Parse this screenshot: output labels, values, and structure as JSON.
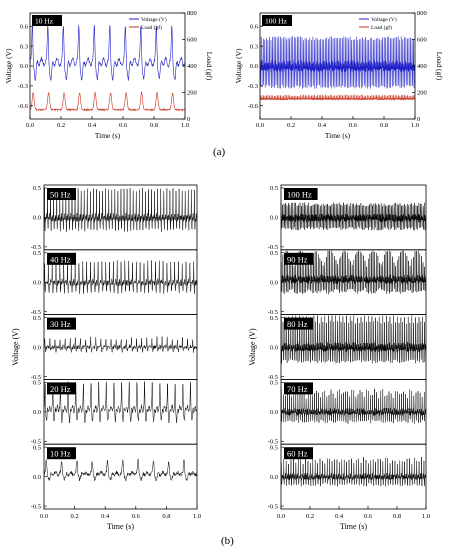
{
  "figure": {
    "caption_a": "(a)",
    "caption_b": "(b)"
  },
  "chart_data": [
    {
      "id": "a1",
      "type": "line",
      "tag": "10 Hz",
      "xlabel": "Time (s)",
      "ylabel": "Voltage (V)",
      "ylabel_right": "Load (gf)",
      "xlim": [
        0,
        1
      ],
      "ylim": [
        -0.8,
        0.8
      ],
      "ylim_right": [
        0,
        800
      ],
      "x_ticks": [
        "0.0",
        "0.2",
        "0.4",
        "0.6",
        "0.8",
        "1.0"
      ],
      "y_ticks": [
        "-0.6",
        "-0.3",
        "0.0",
        "0.3",
        "0.6"
      ],
      "y_ticks_right": [
        "0",
        "200",
        "400",
        "600",
        "800"
      ],
      "legend": [
        "Voltage (V)",
        "Load (gf)"
      ],
      "legend_position": "top-right",
      "series": [
        {
          "name": "Voltage (V)",
          "color": "#2020c8",
          "frequency_hz": 10,
          "baseline": 0.06,
          "amplitude": 0.45,
          "noise": 0.05
        },
        {
          "name": "Load (gf)",
          "color": "#c8321e",
          "frequency_hz": 10,
          "baseline": 70,
          "amplitude": 130,
          "noise": 12
        }
      ]
    },
    {
      "id": "a2",
      "type": "line",
      "tag": "100 Hz",
      "xlabel": "Time (s)",
      "ylabel": "Voltage (V)",
      "ylabel_right": "Load (gf)",
      "xlim": [
        0,
        1
      ],
      "ylim": [
        -0.8,
        0.8
      ],
      "ylim_right": [
        0,
        800
      ],
      "x_ticks": [
        "0.0",
        "0.2",
        "0.4",
        "0.6",
        "0.8",
        "1.0"
      ],
      "y_ticks": [
        "-0.6",
        "-0.3",
        "0.0",
        "0.3",
        "0.6"
      ],
      "y_ticks_right": [
        "0",
        "200",
        "400",
        "600",
        "800"
      ],
      "legend": [
        "Voltage (V)",
        "Load (gf)"
      ],
      "legend_position": "top-right",
      "series": [
        {
          "name": "Voltage (V)",
          "color": "#2020c8",
          "frequency_hz": 100,
          "baseline": 0.0,
          "amplitude": 0.55,
          "noise": 0.06
        },
        {
          "name": "Load (gf)",
          "color": "#c8321e",
          "frequency_hz": 100,
          "baseline": 150,
          "amplitude": 30,
          "noise": 10
        }
      ]
    },
    {
      "id": "b_left",
      "type": "line",
      "xlabel": "Time (s)",
      "ylabel": "Voltage (V)",
      "xlim": [
        0,
        1
      ],
      "ylim": [
        -0.55,
        0.55
      ],
      "x_ticks": [
        "0.0",
        "0.2",
        "0.4",
        "0.6",
        "0.8",
        "1.0"
      ],
      "y_ticks": [
        "-0.5",
        "0.0",
        "0.5"
      ],
      "panels": [
        {
          "tag": "50 Hz",
          "frequency_hz": 50,
          "baseline": 0.0,
          "amplitude": 0.38
        },
        {
          "tag": "40 Hz",
          "frequency_hz": 40,
          "baseline": 0.0,
          "amplitude": 0.3
        },
        {
          "tag": "30 Hz",
          "frequency_hz": 30,
          "baseline": 0.0,
          "amplitude": 0.12
        },
        {
          "tag": "20 Hz",
          "frequency_hz": 20,
          "baseline": 0.05,
          "amplitude": 0.38
        },
        {
          "tag": "10 Hz",
          "frequency_hz": 10,
          "baseline": 0.05,
          "amplitude": 0.18
        }
      ]
    },
    {
      "id": "b_right",
      "type": "line",
      "xlabel": "Time (s)",
      "ylabel": "Voltage (V)",
      "xlim": [
        0,
        1
      ],
      "ylim": [
        -0.55,
        0.55
      ],
      "x_ticks": [
        "0.0",
        "0.2",
        "0.4",
        "0.6",
        "0.8",
        "1.0"
      ],
      "y_ticks": [
        "-0.5",
        "0.0",
        "0.5"
      ],
      "panels": [
        {
          "tag": "100 Hz",
          "frequency_hz": 100,
          "baseline": 0.0,
          "amplitude": 0.4
        },
        {
          "tag": "90 Hz",
          "frequency_hz": 90,
          "baseline": 0.05,
          "amplitude": 0.4
        },
        {
          "tag": "80 Hz",
          "frequency_hz": 80,
          "baseline": 0.0,
          "amplitude": 0.45
        },
        {
          "tag": "70 Hz",
          "frequency_hz": 70,
          "baseline": 0.0,
          "amplitude": 0.3
        },
        {
          "tag": "60 Hz",
          "frequency_hz": 60,
          "baseline": 0.0,
          "amplitude": 0.25
        }
      ]
    }
  ]
}
